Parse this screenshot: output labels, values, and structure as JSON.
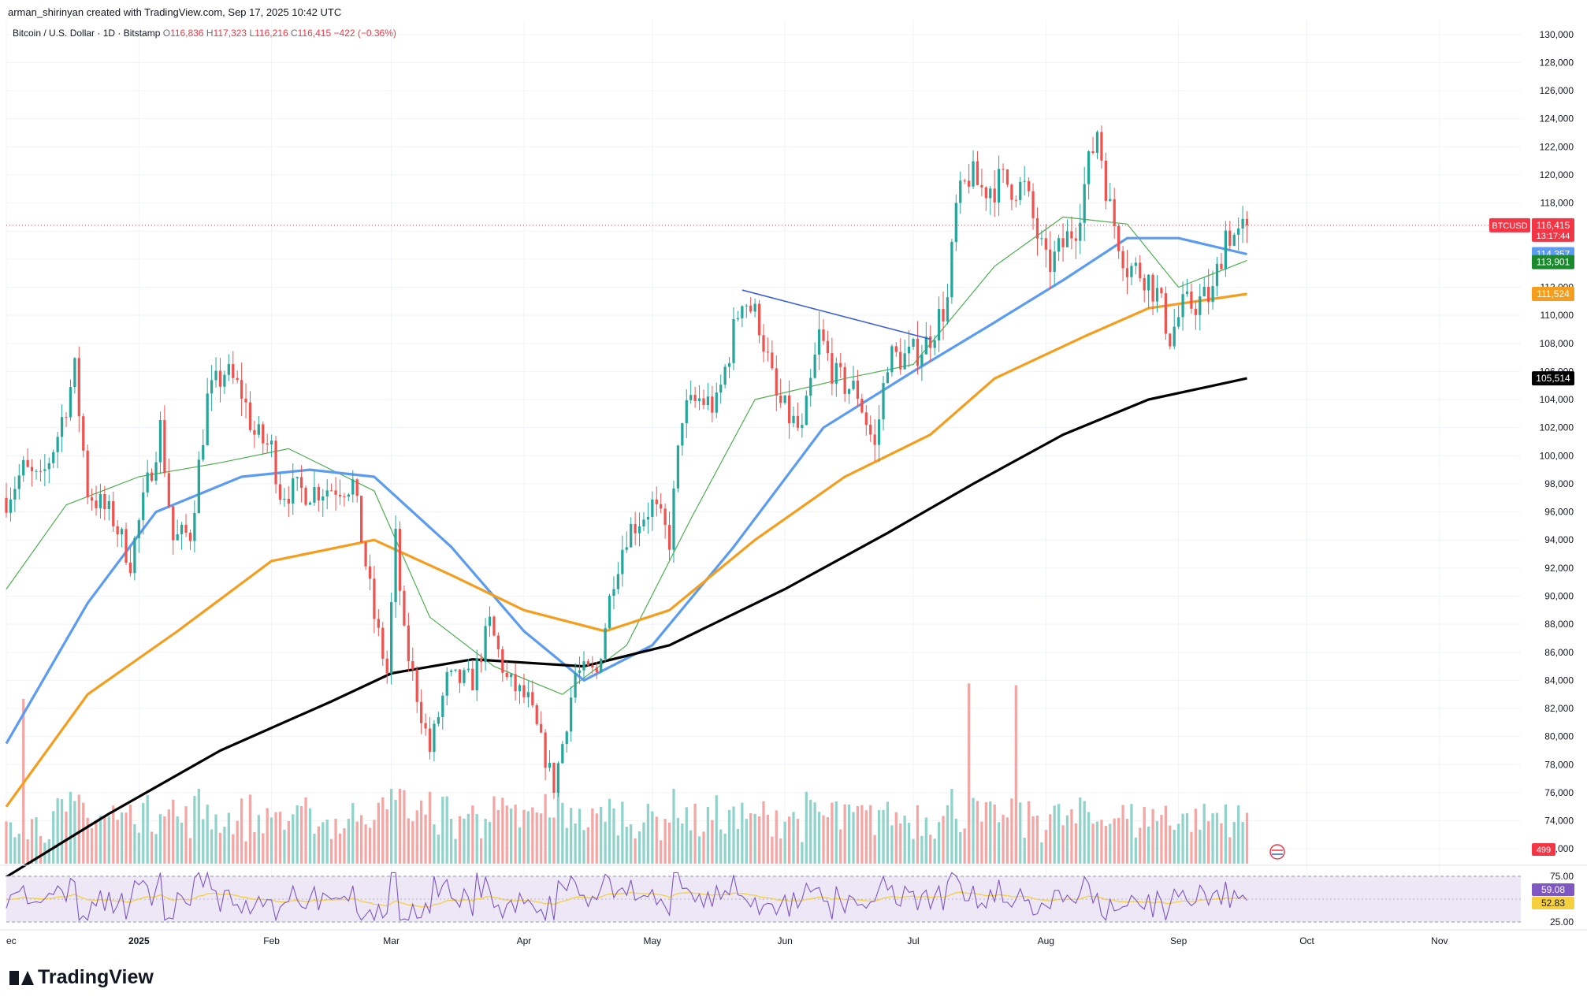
{
  "header": {
    "credit": "arman_shirinyan created with TradingView.com, Sep 17, 2025 10:42 UTC"
  },
  "symbol_bar": {
    "name": "Bitcoin / U.S. Dollar · 1D · Bitstamp",
    "open_label": "O",
    "open": "116,836",
    "high_label": "H",
    "high": "117,323",
    "low_label": "L",
    "low": "116,216",
    "close_label": "C",
    "close": "116,415",
    "change": "−422 (−0.36%)"
  },
  "branding": {
    "logo_text": "TradingView"
  },
  "colors": {
    "up": "#26a69a",
    "down": "#ef5350",
    "up_volume": "#8fd3cb",
    "down_volume": "#f3a6a4",
    "ma_fast": "#4caf50",
    "ma_blue": "#5b9cf2",
    "ma_orange": "#f59d1c",
    "ma_black": "#000000",
    "rsi_line": "#7e57c2",
    "rsi_ma": "#f4d03f",
    "rsi_band": "#ede7f6",
    "trendline": "#3d5fd9"
  },
  "chart_data": {
    "type": "candlestick",
    "symbol": "BTCUSD",
    "interval": "1D",
    "price_axis": {
      "ylim": [
        71000,
        131000
      ],
      "ticks": [
        72000,
        74000,
        76000,
        78000,
        80000,
        82000,
        84000,
        86000,
        88000,
        90000,
        92000,
        94000,
        96000,
        98000,
        100000,
        102000,
        104000,
        106000,
        108000,
        110000,
        112000,
        114000,
        116000,
        118000,
        120000,
        122000,
        124000,
        126000,
        128000,
        130000
      ],
      "tick_labels": [
        "72,000",
        "74,000",
        "76,000",
        "78,000",
        "80,000",
        "82,000",
        "84,000",
        "86,000",
        "88,000",
        "90,000",
        "92,000",
        "94,000",
        "96,000",
        "98,000",
        "100,000",
        "102,000",
        "104,000",
        "106,000",
        "108,000",
        "110,000",
        "112,000",
        "114,000",
        "116,000",
        "118,000",
        "120,000",
        "122,000",
        "124,000",
        "126,000",
        "128,000",
        "130,000"
      ]
    },
    "time_axis": {
      "start": "2024-12-01",
      "end": "2025-11-20",
      "labels": [
        {
          "date": "2024-12-01",
          "text": "ec"
        },
        {
          "date": "2025-01-01",
          "text": "2025"
        },
        {
          "date": "2025-02-01",
          "text": "Feb"
        },
        {
          "date": "2025-03-01",
          "text": "Mar"
        },
        {
          "date": "2025-04-01",
          "text": "Apr"
        },
        {
          "date": "2025-05-01",
          "text": "May"
        },
        {
          "date": "2025-06-01",
          "text": "Jun"
        },
        {
          "date": "2025-07-01",
          "text": "Jul"
        },
        {
          "date": "2025-08-01",
          "text": "Aug"
        },
        {
          "date": "2025-09-01",
          "text": "Sep"
        },
        {
          "date": "2025-10-01",
          "text": "Oct"
        },
        {
          "date": "2025-11-01",
          "text": "Nov"
        }
      ]
    },
    "price_path": [
      {
        "date": "2024-12-01",
        "close": 97000
      },
      {
        "date": "2024-12-05",
        "close": 99000
      },
      {
        "date": "2024-12-09",
        "close": 98000
      },
      {
        "date": "2024-12-13",
        "close": 101500
      },
      {
        "date": "2024-12-17",
        "close": 106000
      },
      {
        "date": "2024-12-20",
        "close": 97500
      },
      {
        "date": "2024-12-26",
        "close": 95500
      },
      {
        "date": "2024-12-30",
        "close": 92500
      },
      {
        "date": "2025-01-06",
        "close": 102000
      },
      {
        "date": "2025-01-09",
        "close": 94000
      },
      {
        "date": "2025-01-13",
        "close": 94500
      },
      {
        "date": "2025-01-17",
        "close": 104000
      },
      {
        "date": "2025-01-21",
        "close": 106000
      },
      {
        "date": "2025-01-25",
        "close": 104500
      },
      {
        "date": "2025-01-28",
        "close": 101500
      },
      {
        "date": "2025-02-01",
        "close": 100500
      },
      {
        "date": "2025-02-03",
        "close": 97500
      },
      {
        "date": "2025-02-10",
        "close": 97500
      },
      {
        "date": "2025-02-20",
        "close": 98000
      },
      {
        "date": "2025-02-25",
        "close": 88500
      },
      {
        "date": "2025-02-28",
        "close": 84500
      },
      {
        "date": "2025-03-02",
        "close": 94000
      },
      {
        "date": "2025-03-04",
        "close": 87000
      },
      {
        "date": "2025-03-10",
        "close": 79000
      },
      {
        "date": "2025-03-14",
        "close": 84000
      },
      {
        "date": "2025-03-20",
        "close": 84000
      },
      {
        "date": "2025-03-24",
        "close": 88000
      },
      {
        "date": "2025-03-28",
        "close": 84000
      },
      {
        "date": "2025-04-02",
        "close": 82500
      },
      {
        "date": "2025-04-06",
        "close": 78500
      },
      {
        "date": "2025-04-08",
        "close": 76500
      },
      {
        "date": "2025-04-10",
        "close": 79500
      },
      {
        "date": "2025-04-13",
        "close": 84500
      },
      {
        "date": "2025-04-18",
        "close": 84500
      },
      {
        "date": "2025-04-22",
        "close": 91500
      },
      {
        "date": "2025-04-25",
        "close": 94500
      },
      {
        "date": "2025-05-01",
        "close": 96500
      },
      {
        "date": "2025-05-05",
        "close": 94000
      },
      {
        "date": "2025-05-08",
        "close": 103000
      },
      {
        "date": "2025-05-12",
        "close": 104000
      },
      {
        "date": "2025-05-16",
        "close": 103500
      },
      {
        "date": "2025-05-22",
        "close": 111500
      },
      {
        "date": "2025-05-26",
        "close": 109500
      },
      {
        "date": "2025-05-30",
        "close": 104000
      },
      {
        "date": "2025-06-05",
        "close": 101500
      },
      {
        "date": "2025-06-09",
        "close": 108500
      },
      {
        "date": "2025-06-13",
        "close": 105500
      },
      {
        "date": "2025-06-18",
        "close": 104500
      },
      {
        "date": "2025-06-22",
        "close": 100500
      },
      {
        "date": "2025-06-25",
        "close": 107000
      },
      {
        "date": "2025-06-30",
        "close": 107000
      },
      {
        "date": "2025-07-04",
        "close": 108000
      },
      {
        "date": "2025-07-09",
        "close": 111000
      },
      {
        "date": "2025-07-11",
        "close": 117500
      },
      {
        "date": "2025-07-14",
        "close": 120000
      },
      {
        "date": "2025-07-17",
        "close": 119000
      },
      {
        "date": "2025-07-22",
        "close": 119500
      },
      {
        "date": "2025-07-27",
        "close": 119000
      },
      {
        "date": "2025-08-01",
        "close": 113500
      },
      {
        "date": "2025-08-03",
        "close": 114000
      },
      {
        "date": "2025-08-08",
        "close": 116500
      },
      {
        "date": "2025-08-13",
        "close": 123300
      },
      {
        "date": "2025-08-16",
        "close": 117500
      },
      {
        "date": "2025-08-20",
        "close": 113500
      },
      {
        "date": "2025-08-24",
        "close": 113000
      },
      {
        "date": "2025-08-27",
        "close": 111500
      },
      {
        "date": "2025-08-30",
        "close": 108500
      },
      {
        "date": "2025-09-02",
        "close": 110500
      },
      {
        "date": "2025-09-06",
        "close": 111000
      },
      {
        "date": "2025-09-09",
        "close": 111500
      },
      {
        "date": "2025-09-12",
        "close": 116000
      },
      {
        "date": "2025-09-15",
        "close": 115500
      },
      {
        "date": "2025-09-17",
        "close": 116415
      }
    ],
    "moving_averages": [
      {
        "name": "short",
        "color": "#4caf50",
        "points": [
          {
            "date": "2024-12-01",
            "value": 90500
          },
          {
            "date": "2024-12-15",
            "value": 96500
          },
          {
            "date": "2025-01-01",
            "value": 98500
          },
          {
            "date": "2025-01-20",
            "value": 99500
          },
          {
            "date": "2025-02-05",
            "value": 100500
          },
          {
            "date": "2025-02-25",
            "value": 97500
          },
          {
            "date": "2025-03-10",
            "value": 88500
          },
          {
            "date": "2025-03-25",
            "value": 85000
          },
          {
            "date": "2025-04-10",
            "value": 83000
          },
          {
            "date": "2025-04-25",
            "value": 86500
          },
          {
            "date": "2025-05-10",
            "value": 95500
          },
          {
            "date": "2025-05-25",
            "value": 104000
          },
          {
            "date": "2025-06-15",
            "value": 105500
          },
          {
            "date": "2025-07-01",
            "value": 106500
          },
          {
            "date": "2025-07-20",
            "value": 113500
          },
          {
            "date": "2025-08-05",
            "value": 117000
          },
          {
            "date": "2025-08-20",
            "value": 116500
          },
          {
            "date": "2025-09-01",
            "value": 112000
          },
          {
            "date": "2025-09-17",
            "value": 113901
          }
        ]
      },
      {
        "name": "blue",
        "color": "#5b9cf2",
        "points": [
          {
            "date": "2024-12-01",
            "value": 79500
          },
          {
            "date": "2024-12-20",
            "value": 89500
          },
          {
            "date": "2025-01-05",
            "value": 96000
          },
          {
            "date": "2025-01-25",
            "value": 98500
          },
          {
            "date": "2025-02-10",
            "value": 99000
          },
          {
            "date": "2025-02-25",
            "value": 98500
          },
          {
            "date": "2025-03-15",
            "value": 93500
          },
          {
            "date": "2025-04-01",
            "value": 87500
          },
          {
            "date": "2025-04-15",
            "value": 84000
          },
          {
            "date": "2025-05-01",
            "value": 86500
          },
          {
            "date": "2025-05-20",
            "value": 93500
          },
          {
            "date": "2025-06-10",
            "value": 102000
          },
          {
            "date": "2025-07-01",
            "value": 106000
          },
          {
            "date": "2025-07-20",
            "value": 109500
          },
          {
            "date": "2025-08-05",
            "value": 112500
          },
          {
            "date": "2025-08-20",
            "value": 115500
          },
          {
            "date": "2025-09-01",
            "value": 115500
          },
          {
            "date": "2025-09-17",
            "value": 114357
          }
        ]
      },
      {
        "name": "orange",
        "color": "#f59d1c",
        "points": [
          {
            "date": "2024-12-01",
            "value": 75000
          },
          {
            "date": "2024-12-20",
            "value": 83000
          },
          {
            "date": "2025-01-10",
            "value": 87500
          },
          {
            "date": "2025-02-01",
            "value": 92500
          },
          {
            "date": "2025-02-25",
            "value": 94000
          },
          {
            "date": "2025-03-15",
            "value": 91500
          },
          {
            "date": "2025-04-01",
            "value": 89000
          },
          {
            "date": "2025-04-20",
            "value": 87500
          },
          {
            "date": "2025-05-05",
            "value": 89000
          },
          {
            "date": "2025-05-25",
            "value": 94000
          },
          {
            "date": "2025-06-15",
            "value": 98500
          },
          {
            "date": "2025-07-05",
            "value": 101500
          },
          {
            "date": "2025-07-20",
            "value": 105500
          },
          {
            "date": "2025-08-10",
            "value": 108500
          },
          {
            "date": "2025-08-25",
            "value": 110500
          },
          {
            "date": "2025-09-17",
            "value": 111524
          }
        ]
      },
      {
        "name": "black",
        "color": "#000000",
        "points": [
          {
            "date": "2024-12-01",
            "value": 70000
          },
          {
            "date": "2024-12-25",
            "value": 74500
          },
          {
            "date": "2025-01-20",
            "value": 79000
          },
          {
            "date": "2025-02-15",
            "value": 82500
          },
          {
            "date": "2025-03-01",
            "value": 84500
          },
          {
            "date": "2025-03-20",
            "value": 85500
          },
          {
            "date": "2025-04-15",
            "value": 85000
          },
          {
            "date": "2025-05-05",
            "value": 86500
          },
          {
            "date": "2025-06-01",
            "value": 90500
          },
          {
            "date": "2025-06-25",
            "value": 94500
          },
          {
            "date": "2025-07-15",
            "value": 98000
          },
          {
            "date": "2025-08-05",
            "value": 101500
          },
          {
            "date": "2025-08-25",
            "value": 104000
          },
          {
            "date": "2025-09-17",
            "value": 105514
          }
        ]
      }
    ],
    "trendline": [
      {
        "date": "2025-05-22",
        "value": 111800
      },
      {
        "date": "2025-07-05",
        "value": 108300
      }
    ],
    "price_badges": [
      {
        "label": "BTCUSD",
        "value": "116,415",
        "sub": "13:17:44",
        "price": 116415,
        "color": "#f23645"
      },
      {
        "label": "",
        "value": "114,357",
        "price": 114357,
        "color": "#5b9cf2"
      },
      {
        "label": "",
        "value": "113,901",
        "price": 113901,
        "color": "#1b8a2e"
      },
      {
        "label": "",
        "value": "111,524",
        "price": 111524,
        "color": "#f59d1c"
      },
      {
        "label": "",
        "value": "105,514",
        "price": 105514,
        "color": "#000000"
      }
    ],
    "volume_badge": "499",
    "volume_spikes": [
      {
        "date": "2024-12-05",
        "relative": 0.85
      },
      {
        "date": "2025-07-14",
        "relative": 0.93
      },
      {
        "date": "2025-07-25",
        "relative": 0.92
      }
    ],
    "rsi": {
      "ylim": [
        25,
        75
      ],
      "ticks": [
        75,
        25
      ],
      "tick_labels": [
        "75.00",
        "25.00"
      ],
      "value": "59.08",
      "ma_value": "52.83"
    }
  }
}
